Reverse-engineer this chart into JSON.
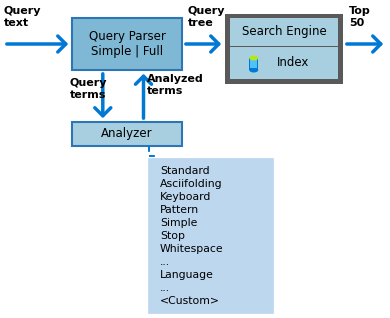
{
  "bg_color": "#ffffff",
  "arrow_color": "#0078d4",
  "box_qp_color": "#7eb8d4",
  "box_qp_edge_color": "#2e75b6",
  "box_analyzer_color": "#a8cfe0",
  "box_analyzer_edge_color": "#2e75b6",
  "box_se_outer_color": "#595959",
  "box_se_inner_color": "#a8cfe0",
  "box_list_color": "#bdd7ee",
  "label_query_text": "Query\ntext",
  "label_query_tree": "Query\ntree",
  "label_top50": "Top\n50",
  "label_qp": "Query Parser\nSimple | Full",
  "label_query_terms": "Query\nterms",
  "label_analyzed_terms": "Analyzed\nterms",
  "label_analyzer": "Analyzer",
  "label_search_engine": "Search Engine",
  "label_index": "Index",
  "list_items": [
    "Standard",
    "Asciifolding",
    "Keyboard",
    "Pattern",
    "Simple",
    "Stop",
    "Whitespace",
    "...",
    "Language",
    "...",
    "<Custom>"
  ],
  "figsize": [
    3.9,
    3.18
  ],
  "dpi": 100
}
